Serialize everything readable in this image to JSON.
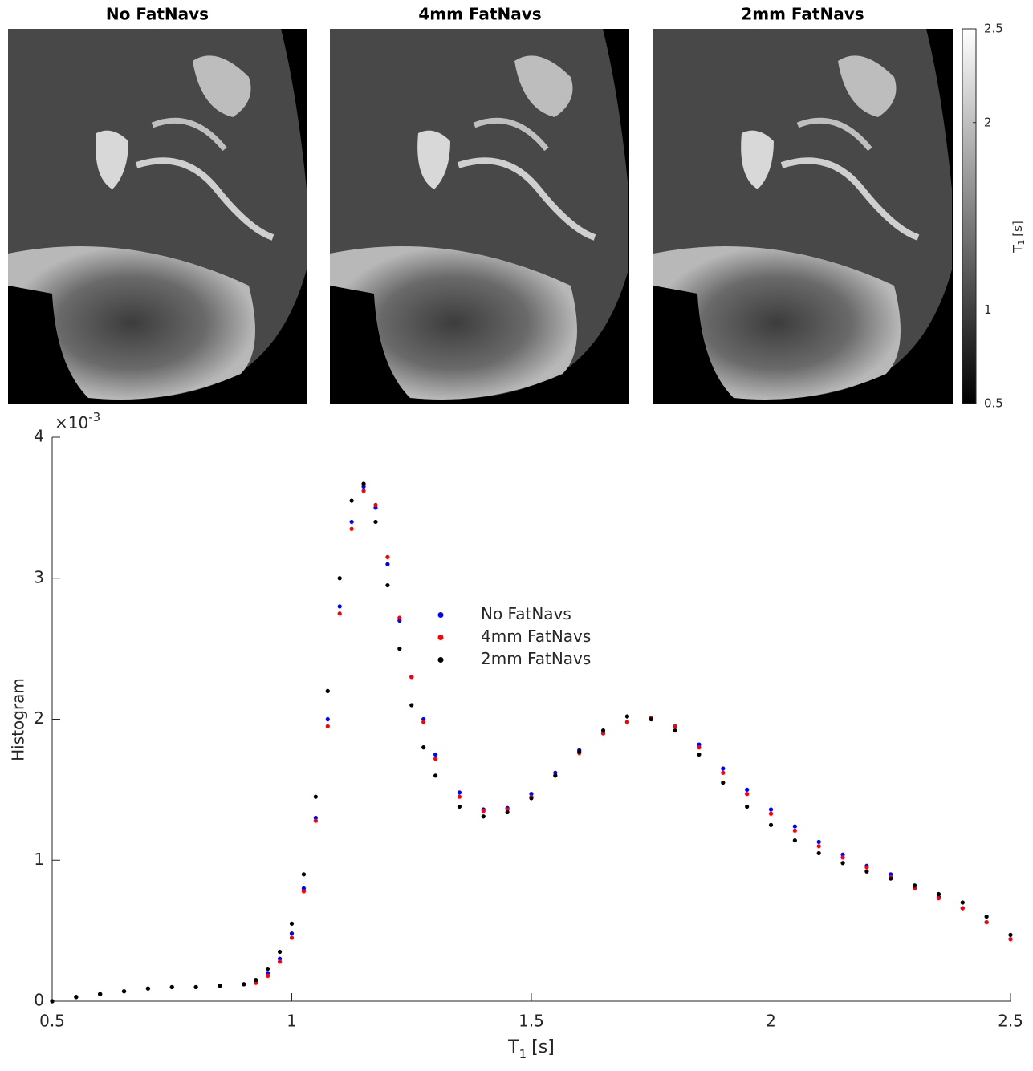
{
  "panels": [
    {
      "title": "No FatNavs"
    },
    {
      "title": "4mm FatNavs"
    },
    {
      "title": "2mm FatNavs"
    }
  ],
  "colorbar": {
    "label": {
      "main": "T",
      "sub": "1",
      "unit": "[s]"
    },
    "lim": [
      0.5,
      2.5
    ],
    "ticks": [
      0.5,
      1,
      2,
      2.5
    ]
  },
  "chart_data": {
    "type": "scatter",
    "ylabel": "Histogram",
    "xlabel": {
      "main": "T",
      "sub": "1",
      "unit": "[s]"
    },
    "y_exponent": {
      "base": "×10",
      "power": "-3"
    },
    "x": [
      0.5,
      0.55,
      0.6,
      0.65,
      0.7,
      0.75,
      0.8,
      0.85,
      0.9,
      0.925,
      0.95,
      0.975,
      1.0,
      1.025,
      1.05,
      1.075,
      1.1,
      1.125,
      1.15,
      1.175,
      1.2,
      1.225,
      1.25,
      1.275,
      1.3,
      1.35,
      1.4,
      1.45,
      1.5,
      1.55,
      1.6,
      1.65,
      1.7,
      1.75,
      1.8,
      1.85,
      1.9,
      1.95,
      2.0,
      2.05,
      2.1,
      2.15,
      2.2,
      2.25,
      2.3,
      2.35,
      2.4,
      2.45,
      2.5
    ],
    "series": [
      {
        "name": "No FatNavs",
        "color": "#0000ff",
        "values": [
          0,
          0.03,
          0.05,
          0.07,
          0.09,
          0.1,
          0.1,
          0.11,
          0.12,
          0.14,
          0.2,
          0.3,
          0.48,
          0.8,
          1.3,
          2.0,
          2.8,
          3.4,
          3.65,
          3.5,
          3.1,
          2.7,
          2.3,
          2.0,
          1.75,
          1.48,
          1.36,
          1.37,
          1.47,
          1.62,
          1.78,
          1.9,
          1.98,
          2.0,
          1.95,
          1.82,
          1.65,
          1.5,
          1.36,
          1.24,
          1.13,
          1.04,
          0.96,
          0.9,
          0.82,
          0.74,
          0.66,
          0.56,
          0.44
        ]
      },
      {
        "name": "4mm FatNavs",
        "color": "#ff0000",
        "values": [
          0,
          0.03,
          0.05,
          0.07,
          0.09,
          0.1,
          0.1,
          0.11,
          0.12,
          0.13,
          0.18,
          0.28,
          0.45,
          0.78,
          1.28,
          1.95,
          2.75,
          3.35,
          3.62,
          3.52,
          3.15,
          2.72,
          2.3,
          1.98,
          1.72,
          1.45,
          1.35,
          1.36,
          1.45,
          1.6,
          1.76,
          1.9,
          1.98,
          2.01,
          1.95,
          1.8,
          1.62,
          1.47,
          1.33,
          1.21,
          1.1,
          1.02,
          0.95,
          0.88,
          0.8,
          0.73,
          0.66,
          0.56,
          0.44
        ]
      },
      {
        "name": "2mm FatNavs",
        "color": "#000000",
        "values": [
          0,
          0.03,
          0.05,
          0.07,
          0.09,
          0.1,
          0.1,
          0.11,
          0.12,
          0.15,
          0.23,
          0.35,
          0.55,
          0.9,
          1.45,
          2.2,
          3.0,
          3.55,
          3.67,
          3.4,
          2.95,
          2.5,
          2.1,
          1.8,
          1.6,
          1.38,
          1.31,
          1.34,
          1.44,
          1.6,
          1.77,
          1.92,
          2.02,
          2.0,
          1.92,
          1.75,
          1.55,
          1.38,
          1.25,
          1.14,
          1.05,
          0.98,
          0.92,
          0.87,
          0.82,
          0.76,
          0.7,
          0.6,
          0.47
        ]
      }
    ],
    "xlim": [
      0.5,
      2.5
    ],
    "xticks": [
      0.5,
      1,
      1.5,
      2,
      2.5
    ],
    "ylim": [
      0,
      4
    ],
    "yticks": [
      0,
      1,
      2,
      3,
      4
    ],
    "legend_position": "center",
    "grid": false
  }
}
